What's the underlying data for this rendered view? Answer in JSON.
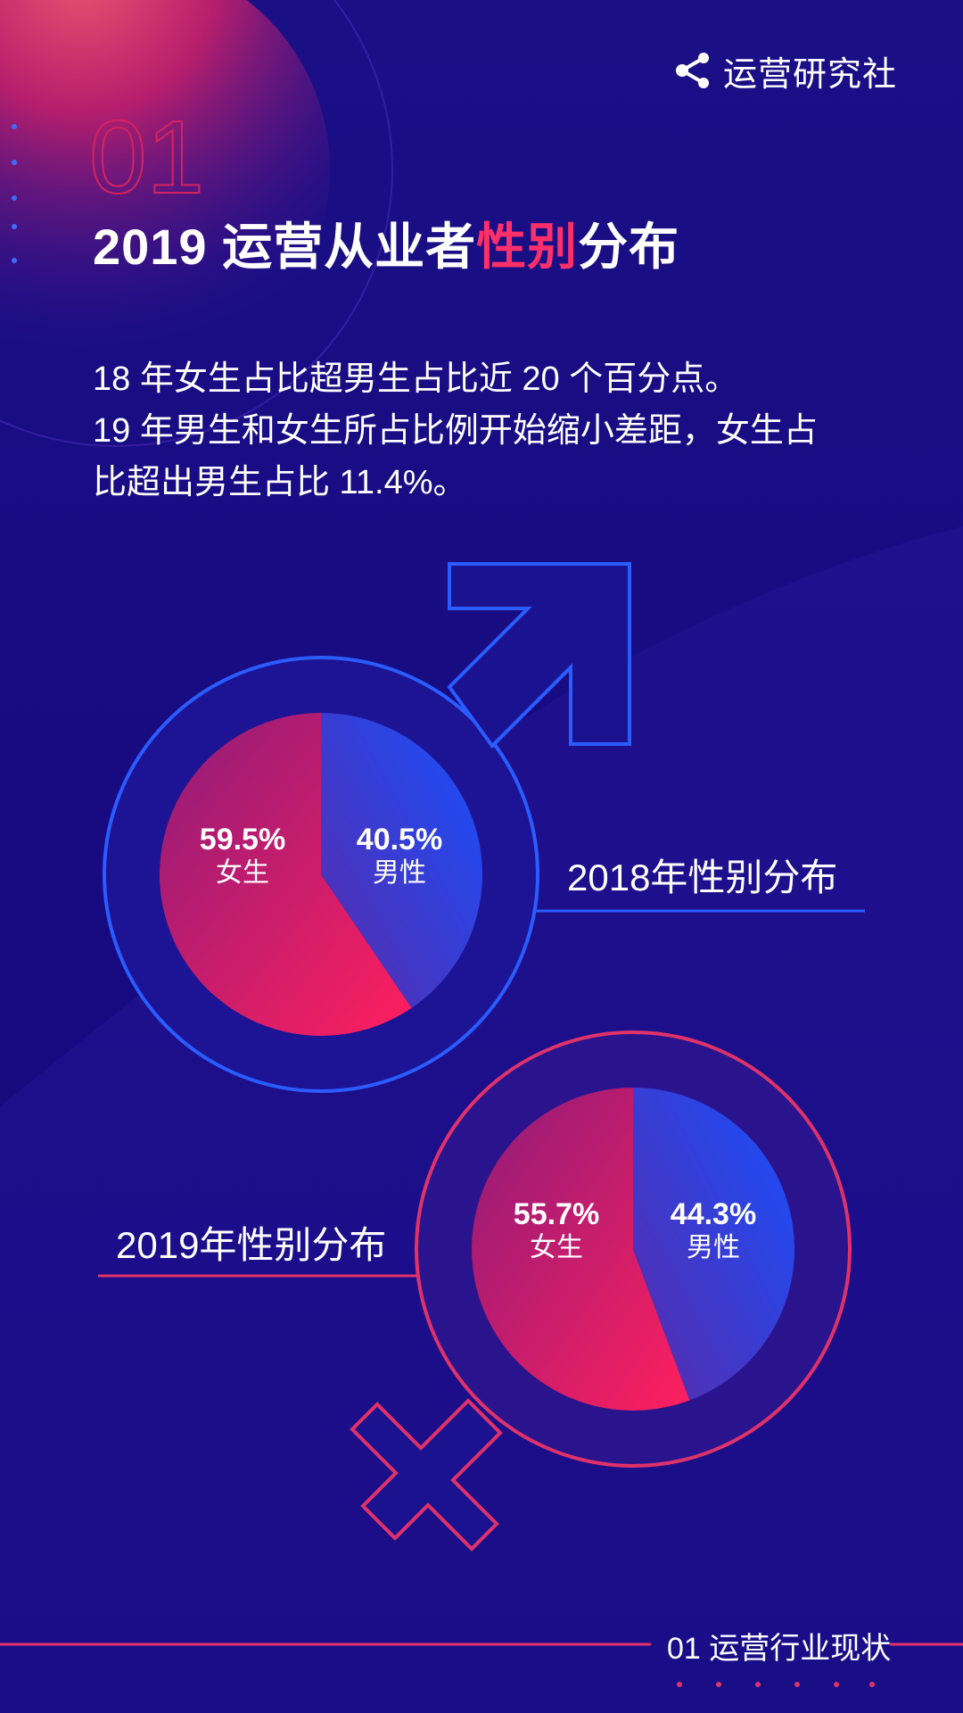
{
  "brand": {
    "name": "运营研究社",
    "icon": "share-icon"
  },
  "section": {
    "number": "01"
  },
  "title": {
    "before": "2019 运营从业者",
    "highlight": "性别",
    "after": "分布",
    "highlight_color": "#ff2f6a"
  },
  "description": [
    "18 年女生占比超男生占比近 20 个百分点。",
    "19  年男生和女生所占比例开始缩小差距，女生占",
    "比超出男生占比 11.4%。"
  ],
  "chart_data": [
    {
      "type": "pie",
      "title": "2018年性别分布",
      "slices": [
        {
          "pct_label": "59.5%",
          "category": "女生",
          "value": 59.5
        },
        {
          "pct_label": "40.5%",
          "category": "男性",
          "value": 40.5
        }
      ]
    },
    {
      "type": "pie",
      "title": "2019年性别分布",
      "slices": [
        {
          "pct_label": "55.7%",
          "category": "女生",
          "value": 55.7
        },
        {
          "pct_label": "44.3%",
          "category": "男性",
          "value": 44.3
        }
      ]
    }
  ],
  "colors": {
    "female": "#e81b5c",
    "male": "#1747e6",
    "outline_male": "#2255ff",
    "outline_female": "#e0326a"
  },
  "footer": {
    "label": "01 运营行业现状"
  }
}
